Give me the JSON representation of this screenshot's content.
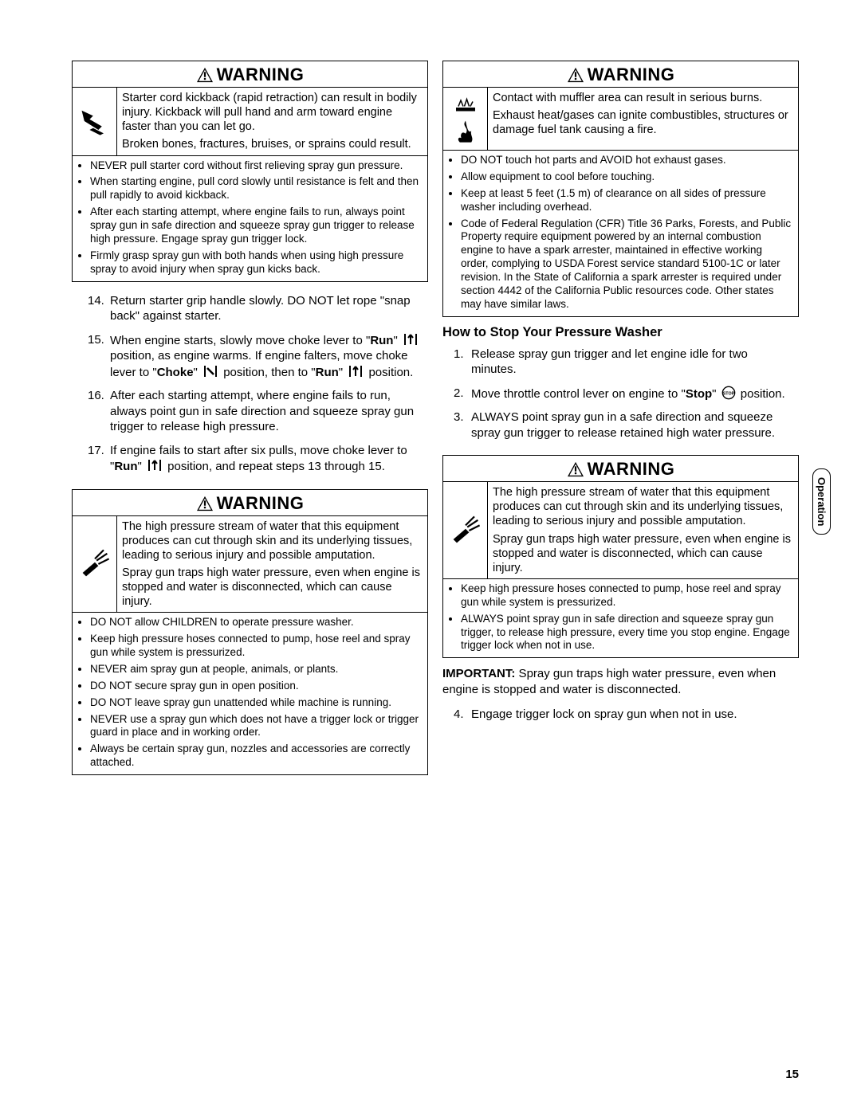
{
  "warningLabel": "WARNING",
  "sideTab": "Operation",
  "pageNumber": "15",
  "left": {
    "box1": {
      "p1": "Starter cord kickback (rapid retraction) can result in bodily injury. Kickback will pull hand and arm toward engine faster than you can let go.",
      "p2": "Broken bones, fractures, bruises, or sprains could result.",
      "bullets": [
        "NEVER pull starter cord without first relieving spray gun pressure.",
        "When starting engine, pull cord slowly until resistance is felt and then pull rapidly to avoid kickback.",
        "After each starting attempt, where engine fails to run, always point spray gun in safe direction and squeeze spray gun trigger to release high pressure. Engage spray gun trigger lock.",
        "Firmly grasp spray gun with both hands when using high pressure spray to avoid injury when spray gun kicks back."
      ]
    },
    "steps": {
      "n14": "14.",
      "t14": "Return starter grip handle slowly. DO NOT let rope \"snap back\" against starter.",
      "n15": "15.",
      "t15a": "When engine starts, slowly move choke lever to \"",
      "t15run1": "Run",
      "t15b": "\" ",
      "t15c": " position, as engine warms. If engine falters, move choke lever to \"",
      "t15choke": "Choke",
      "t15d": "\" ",
      "t15e": " position, then to \"",
      "t15run2": "Run",
      "t15f": "\" ",
      "t15g": " position.",
      "n16": "16.",
      "t16": "After each starting attempt, where engine fails to run, always point gun in safe direction and squeeze spray gun trigger to release high pressure.",
      "n17": "17.",
      "t17a": "If engine fails to start after six pulls, move choke lever to \"",
      "t17run": "Run",
      "t17b": "\" ",
      "t17c": " position, and repeat steps 13 through 15."
    },
    "box2": {
      "p1": "The high pressure stream of water that this equipment produces can cut through skin and its underlying tissues, leading to serious injury and possible amputation.",
      "p2": "Spray gun traps high water pressure, even when engine is stopped and water is disconnected, which can cause injury.",
      "bullets": [
        "DO NOT allow CHILDREN to operate pressure washer.",
        "Keep high pressure hoses connected to pump, hose reel and spray gun while system is pressurized.",
        "NEVER aim spray gun at people, animals, or plants.",
        "DO NOT secure spray gun in open position.",
        "DO NOT leave spray gun unattended while machine is running.",
        "NEVER use a spray gun which does not have a trigger lock or trigger guard in place and in working order.",
        "Always be certain spray gun, nozzles and accessories are correctly attached."
      ]
    }
  },
  "right": {
    "box1": {
      "p1": "Contact with muffler area can result in serious burns.",
      "p2": "Exhaust heat/gases can ignite combustibles, structures or damage fuel tank causing a fire.",
      "bullets": [
        "DO NOT touch hot parts and AVOID hot exhaust gases.",
        "Allow equipment to cool before touching.",
        "Keep at least 5 feet (1.5 m) of clearance on all sides of pressure washer including overhead.",
        "Code of Federal Regulation (CFR) Title 36 Parks, Forests, and Public Property require equipment powered by an internal combustion engine to have a spark arrester, maintained in effective working order, complying to USDA Forest service standard 5100-1C or later revision. In the State of California a spark arrester is required under section 4442 of the California Public resources code. Other states may have similar laws."
      ]
    },
    "heading": "How to Stop Your Pressure Washer",
    "steps": {
      "n1": "1.",
      "t1": "Release spray gun trigger and let engine idle for two minutes.",
      "n2": "2.",
      "t2a": "Move throttle control lever on engine to \"",
      "t2stop": "Stop",
      "t2b": "\" ",
      "t2c": " position.",
      "n3": "3.",
      "t3": "ALWAYS point spray gun in a safe direction and squeeze spray gun trigger to release retained high water pressure."
    },
    "box2": {
      "p1": "The high pressure stream of water that this equipment produces can cut through skin and its underlying tissues, leading to serious injury and possible amputation.",
      "p2": "Spray gun traps high water pressure, even when engine is stopped and water is disconnected, which can cause injury.",
      "bullets": [
        "Keep high pressure hoses connected to pump, hose reel and spray gun while system is pressurized.",
        "ALWAYS point spray gun in safe direction and squeeze spray gun trigger, to release high pressure, every time you stop engine. Engage trigger lock when not in use."
      ]
    },
    "importantLabel": "IMPORTANT:",
    "importantText": " Spray gun traps high water pressure, even when engine is stopped and water is disconnected.",
    "step4n": "4.",
    "step4t": "Engage trigger lock on spray gun when not in use."
  }
}
